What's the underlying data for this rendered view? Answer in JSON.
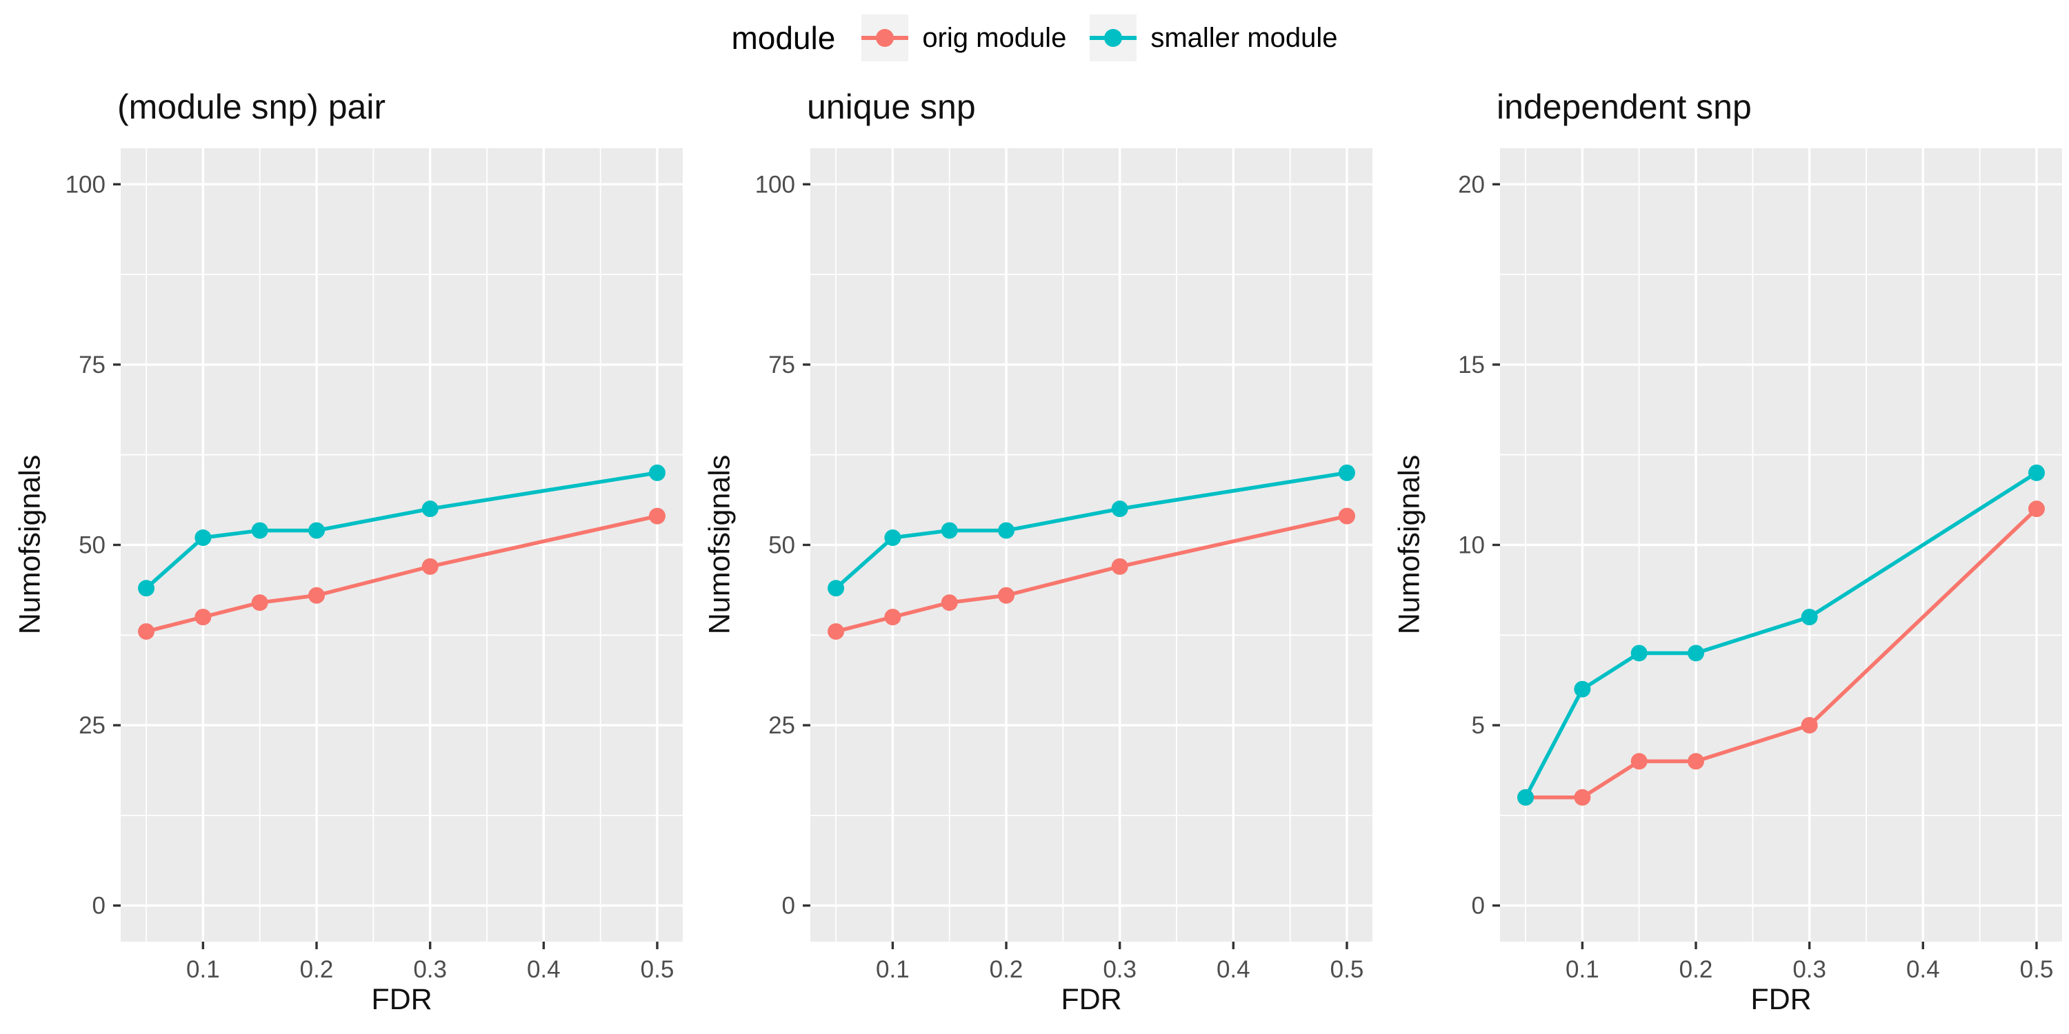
{
  "colors": {
    "panel_bg": "#EBEBEB",
    "grid": "#FFFFFF",
    "tick_mark": "#333333",
    "tick_text": "#4D4D4D",
    "legend_key_bg": "#F2F2F2",
    "orig_module": "#F8766D",
    "smaller_module": "#00BFC4"
  },
  "legend": {
    "title": "module",
    "entries": [
      {
        "label": "orig module",
        "color": "#F8766D"
      },
      {
        "label": "smaller module",
        "color": "#00BFC4"
      }
    ]
  },
  "chart_data": [
    {
      "type": "line",
      "title": "(module snp) pair",
      "xlabel": "FDR",
      "ylabel": "Numofsignals",
      "x": [
        0.05,
        0.1,
        0.15,
        0.2,
        0.3,
        0.5
      ],
      "series": [
        {
          "name": "orig module",
          "color": "#F8766D",
          "values": [
            38,
            40,
            42,
            43,
            47,
            54
          ]
        },
        {
          "name": "smaller module",
          "color": "#00BFC4",
          "values": [
            44,
            51,
            52,
            52,
            55,
            60
          ]
        }
      ],
      "ylim": [
        0,
        100
      ],
      "yticks": [
        0,
        25,
        50,
        75,
        100
      ],
      "ytick_labels": [
        "0",
        "25",
        "50",
        "75",
        "100"
      ],
      "xticks": [
        0.1,
        0.2,
        0.3,
        0.4,
        0.5
      ],
      "xtick_labels": [
        "0.1",
        "0.2",
        "0.3",
        "0.4",
        "0.5"
      ],
      "grid": "on",
      "legend_position": "top"
    },
    {
      "type": "line",
      "title": "unique snp",
      "xlabel": "FDR",
      "ylabel": "Numofsignals",
      "x": [
        0.05,
        0.1,
        0.15,
        0.2,
        0.3,
        0.5
      ],
      "series": [
        {
          "name": "orig module",
          "color": "#F8766D",
          "values": [
            38,
            40,
            42,
            43,
            47,
            54
          ]
        },
        {
          "name": "smaller module",
          "color": "#00BFC4",
          "values": [
            44,
            51,
            52,
            52,
            55,
            60
          ]
        }
      ],
      "ylim": [
        0,
        100
      ],
      "yticks": [
        0,
        25,
        50,
        75,
        100
      ],
      "ytick_labels": [
        "0",
        "25",
        "50",
        "75",
        "100"
      ],
      "xticks": [
        0.1,
        0.2,
        0.3,
        0.4,
        0.5
      ],
      "xtick_labels": [
        "0.1",
        "0.2",
        "0.3",
        "0.4",
        "0.5"
      ],
      "grid": "on",
      "legend_position": "top"
    },
    {
      "type": "line",
      "title": "independent snp",
      "xlabel": "FDR",
      "ylabel": "Numofsignals",
      "x": [
        0.05,
        0.1,
        0.15,
        0.2,
        0.3,
        0.5
      ],
      "series": [
        {
          "name": "orig module",
          "color": "#F8766D",
          "values": [
            3,
            3,
            4,
            4,
            5,
            11
          ]
        },
        {
          "name": "smaller module",
          "color": "#00BFC4",
          "values": [
            3,
            6,
            7,
            7,
            8,
            12
          ]
        }
      ],
      "ylim": [
        0,
        20
      ],
      "yticks": [
        0,
        5,
        10,
        15,
        20
      ],
      "ytick_labels": [
        "0",
        "5",
        "10",
        "15",
        "20"
      ],
      "xticks": [
        0.1,
        0.2,
        0.3,
        0.4,
        0.5
      ],
      "xtick_labels": [
        "0.1",
        "0.2",
        "0.3",
        "0.4",
        "0.5"
      ],
      "grid": "on",
      "legend_position": "top"
    }
  ]
}
